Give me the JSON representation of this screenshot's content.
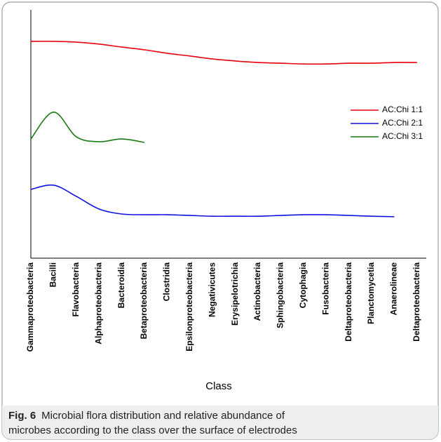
{
  "chart_data": {
    "type": "line",
    "xlabel": "Class",
    "categories": [
      "Gammaproteobacteria",
      "Bacilli",
      "Flavobacteria",
      "Alphaproteobacteria",
      "Bacteroidia",
      "Betaproteobacteria",
      "Clostridia",
      "Epsilonproteobacteria",
      "Negativicutes",
      "Erysipelotrichia",
      "Actinobacteria",
      "Sphingobacteria",
      "Cytophagia",
      "Fusobacteria",
      "Deltaproteobacteria",
      "Planctomycetia",
      "Anaerolineae",
      "Deltaproteobacteria"
    ],
    "series": [
      {
        "name": "AC:Chi 1:1",
        "color": "#e8000b",
        "values": [
          87.3,
          87.3,
          87.0,
          86.2,
          85.0,
          83.9,
          82.5,
          81.4,
          80.2,
          79.4,
          78.8,
          78.5,
          78.2,
          78.2,
          78.5,
          78.5,
          78.8,
          78.8
        ]
      },
      {
        "name": "AC:Chi 2:1",
        "color": "#1010e0",
        "values": [
          27.7,
          29.4,
          24.9,
          19.8,
          17.8,
          17.5,
          17.5,
          17.2,
          16.9,
          16.9,
          16.9,
          17.2,
          17.5,
          17.5,
          17.2,
          16.9,
          16.7,
          null
        ]
      },
      {
        "name": "AC:Chi 3:1",
        "color": "#1a7a10",
        "values": [
          48.0,
          58.8,
          48.9,
          46.9,
          48.0,
          46.6,
          null,
          null,
          null,
          null,
          null,
          null,
          null,
          null,
          null,
          null,
          null,
          null
        ]
      }
    ],
    "ylim": [
      0,
      100
    ],
    "legend": "right"
  },
  "caption": {
    "label": "Fig. 6",
    "lines": [
      "Microbial flora distribution and relative abundance of",
      "microbes according to the class over the surface of electrodes"
    ]
  }
}
